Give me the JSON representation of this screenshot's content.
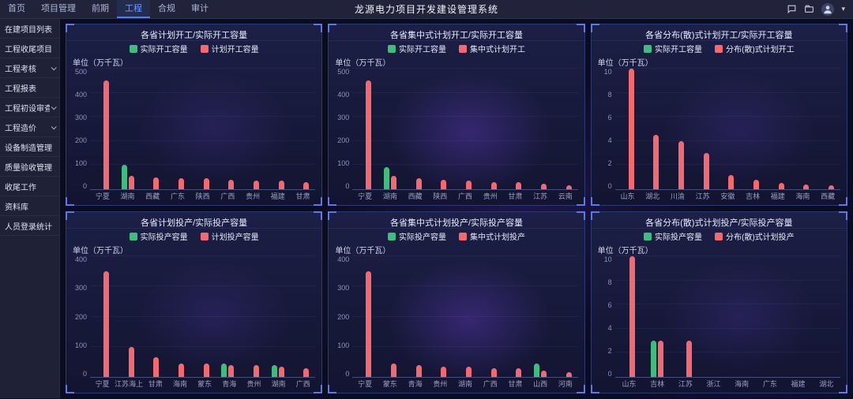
{
  "navbar": {
    "title": "龙源电力项目开发建设管理系统",
    "items": [
      {
        "label": "首页",
        "active": false
      },
      {
        "label": "项目管理",
        "active": false
      },
      {
        "label": "前期",
        "active": false
      },
      {
        "label": "工程",
        "active": true
      },
      {
        "label": "合规",
        "active": false
      },
      {
        "label": "审计",
        "active": false
      }
    ],
    "icons": [
      "message-icon",
      "files-icon",
      "user-avatar",
      "caret-down-icon"
    ]
  },
  "sidebar": {
    "items": [
      {
        "label": "在建项目列表",
        "expandable": false
      },
      {
        "label": "工程收尾项目",
        "expandable": false
      },
      {
        "label": "工程考核",
        "expandable": true
      },
      {
        "label": "工程报表",
        "expandable": false
      },
      {
        "label": "工程初设审查",
        "expandable": true
      },
      {
        "label": "工程造价",
        "expandable": true
      },
      {
        "label": "设备制造管理",
        "expandable": false
      },
      {
        "label": "质量验收管理",
        "expandable": false
      },
      {
        "label": "收尾工作",
        "expandable": false
      },
      {
        "label": "资料库",
        "expandable": false
      },
      {
        "label": "人员登录统计",
        "expandable": false
      }
    ]
  },
  "theme": {
    "accent_blue": "#4d7dff",
    "bar_green": "#3ebd7e",
    "bar_red": "#f4696f",
    "panel_border": "#2c3a74"
  },
  "chart_data": [
    {
      "type": "bar",
      "title": "各省计划开工/实际开工容量",
      "unit_label": "单位（万千瓦）",
      "categories": [
        "宁夏",
        "湖南",
        "西藏",
        "广东",
        "陕西",
        "广西",
        "贵州",
        "福建",
        "甘肃"
      ],
      "series": [
        {
          "name": "实际开工容量",
          "color": "#3ebd7e",
          "values": [
            0,
            100,
            0,
            0,
            0,
            0,
            0,
            0,
            0
          ]
        },
        {
          "name": "计划开工容量",
          "color": "#f4696f",
          "values": [
            450,
            55,
            50,
            45,
            45,
            40,
            35,
            35,
            30
          ]
        }
      ],
      "ylim": [
        0,
        500
      ],
      "yticks": [
        0,
        100,
        200,
        300,
        400,
        500
      ],
      "legend_position": "top",
      "grid": true
    },
    {
      "type": "bar",
      "title": "各省集中式计划开工/实际开工容量",
      "unit_label": "单位（万千瓦）",
      "categories": [
        "宁夏",
        "湖南",
        "西藏",
        "陕西",
        "广西",
        "贵州",
        "甘肃",
        "江苏",
        "云南"
      ],
      "series": [
        {
          "name": "实际开工容量",
          "color": "#3ebd7e",
          "values": [
            0,
            90,
            0,
            0,
            0,
            0,
            0,
            0,
            0
          ]
        },
        {
          "name": "集中式计划开工",
          "color": "#f4696f",
          "values": [
            450,
            55,
            45,
            40,
            35,
            30,
            28,
            22,
            18
          ]
        }
      ],
      "ylim": [
        0,
        500
      ],
      "yticks": [
        0,
        100,
        200,
        300,
        400,
        500
      ],
      "legend_position": "top",
      "grid": true
    },
    {
      "type": "bar",
      "title": "各省分布(散)式计划开工/实际开工容量",
      "unit_label": "单位（万千瓦）",
      "categories": [
        "山东",
        "湖北",
        "川渝",
        "江苏",
        "安徽",
        "吉林",
        "福建",
        "海南",
        "西藏"
      ],
      "series": [
        {
          "name": "实际开工容量",
          "color": "#3ebd7e",
          "values": [
            0,
            0,
            0,
            0,
            0,
            0,
            0,
            0,
            0
          ]
        },
        {
          "name": "分布(散)式计划开工",
          "color": "#f4696f",
          "values": [
            10,
            4.5,
            4,
            3,
            1.2,
            0.8,
            0.5,
            0.4,
            0.3
          ]
        }
      ],
      "ylim": [
        0,
        10
      ],
      "yticks": [
        0,
        2,
        4,
        6,
        8,
        10
      ],
      "legend_position": "top",
      "grid": true
    },
    {
      "type": "bar",
      "title": "各省计划投产/实际投产容量",
      "unit_label": "单位（万千瓦）",
      "categories": [
        "宁夏",
        "江苏海上",
        "甘肃",
        "海南",
        "蒙东",
        "青海",
        "贵州",
        "湖南",
        "广西"
      ],
      "series": [
        {
          "name": "实际投产容量",
          "color": "#3ebd7e",
          "values": [
            0,
            0,
            0,
            0,
            0,
            45,
            0,
            40,
            0
          ]
        },
        {
          "name": "计划投产容量",
          "color": "#f4696f",
          "values": [
            350,
            100,
            65,
            45,
            45,
            40,
            40,
            35,
            30
          ]
        }
      ],
      "ylim": [
        0,
        400
      ],
      "yticks": [
        0,
        100,
        200,
        300,
        400
      ],
      "legend_position": "top",
      "grid": true
    },
    {
      "type": "bar",
      "title": "各省集中式计划投产/实际投产容量",
      "unit_label": "单位（万千瓦）",
      "categories": [
        "宁夏",
        "蒙东",
        "青海",
        "贵州",
        "湖南",
        "广西",
        "甘肃",
        "山西",
        "河南"
      ],
      "series": [
        {
          "name": "实际投产容量",
          "color": "#3ebd7e",
          "values": [
            0,
            0,
            0,
            0,
            0,
            0,
            0,
            45,
            0
          ]
        },
        {
          "name": "集中式计划投产",
          "color": "#f4696f",
          "values": [
            350,
            45,
            40,
            35,
            35,
            30,
            28,
            20,
            15
          ]
        }
      ],
      "ylim": [
        0,
        400
      ],
      "yticks": [
        0,
        100,
        200,
        300,
        400
      ],
      "legend_position": "top",
      "grid": true
    },
    {
      "type": "bar",
      "title": "各省分布(散)式计划投产/实际投产容量",
      "unit_label": "单位（万千瓦）",
      "categories": [
        "山东",
        "吉林",
        "江苏",
        "浙江",
        "海南",
        "广东",
        "福建",
        "湖北"
      ],
      "series": [
        {
          "name": "实际投产容量",
          "color": "#3ebd7e",
          "values": [
            0,
            3,
            0,
            0,
            0,
            0,
            0,
            0
          ]
        },
        {
          "name": "分布(散)式计划投产",
          "color": "#f4696f",
          "values": [
            10,
            3,
            3,
            0,
            0,
            0,
            0,
            0
          ]
        }
      ],
      "ylim": [
        0,
        10
      ],
      "yticks": [
        0,
        2,
        4,
        6,
        8,
        10
      ],
      "legend_position": "top",
      "grid": true
    }
  ]
}
